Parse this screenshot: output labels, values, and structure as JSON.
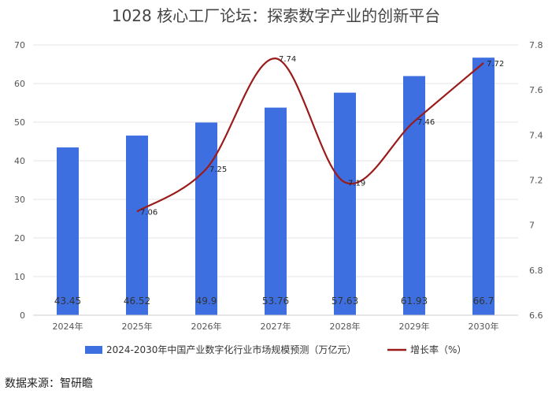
{
  "title": "1028 核心工厂论坛：探索数字产业的创新平台",
  "source": "数据来源：智研瞻",
  "colors": {
    "bar": "#3e6fe0",
    "line": "#9b1b1b",
    "grid": "#e6e6e6"
  },
  "chart_data": {
    "type": "bar",
    "categories": [
      "2024年",
      "2025年",
      "2026年",
      "2027年",
      "2028年",
      "2029年",
      "2030年"
    ],
    "series": [
      {
        "name": "2024-2030年中国产业数字化行业市场规模预测（万亿元）",
        "type": "bar",
        "axis": "left",
        "values": [
          43.45,
          46.52,
          49.9,
          53.76,
          57.63,
          61.93,
          66.7
        ],
        "labels": [
          "43.45",
          "46.52",
          "49.9",
          "53.76",
          "57.63",
          "61.93",
          "66.7"
        ]
      },
      {
        "name": "增长率（%）",
        "type": "line",
        "axis": "right",
        "values": [
          null,
          7.06,
          7.25,
          7.74,
          7.19,
          7.46,
          7.72
        ],
        "labels": [
          "",
          "7.06",
          "7.25",
          "7.74",
          "7.19",
          "7.46",
          "7.72"
        ]
      }
    ],
    "y_left": {
      "min": 0,
      "max": 70,
      "ticks": [
        0,
        10,
        20,
        30,
        40,
        50,
        60,
        70
      ]
    },
    "y_right": {
      "min": 6.6,
      "max": 7.8,
      "ticks": [
        "6.6",
        "6.8",
        "7",
        "7.2",
        "7.4",
        "7.6",
        "7.8"
      ]
    },
    "grid": true,
    "legend_position": "bottom"
  }
}
